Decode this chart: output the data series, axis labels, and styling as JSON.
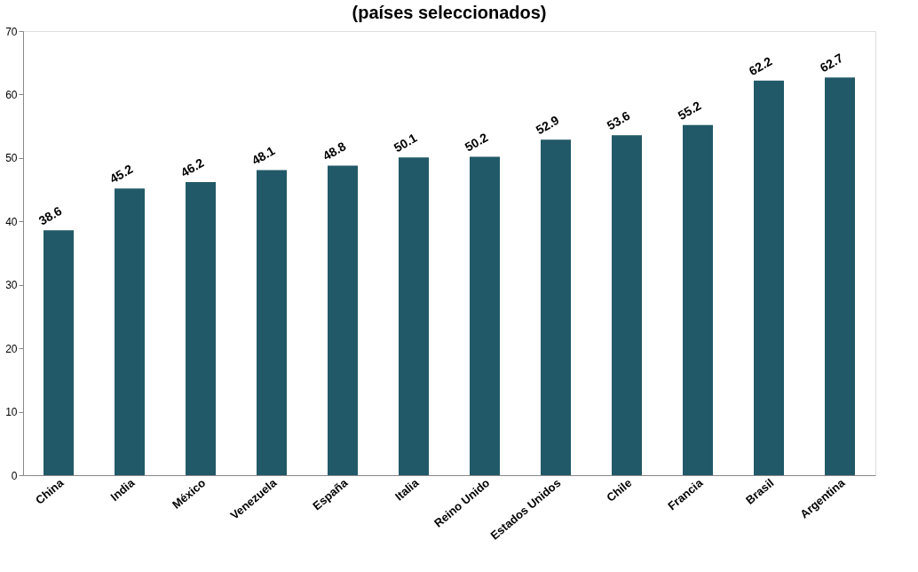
{
  "chart_data": {
    "type": "bar",
    "title": "(países seleccionados)",
    "categories": [
      "China",
      "India",
      "México",
      "Venezuela",
      "España",
      "Italia",
      "Reino Unido",
      "Estados Unidos",
      "Chile",
      "Francia",
      "Brasil",
      "Argentina"
    ],
    "values": [
      38.6,
      45.2,
      46.2,
      48.1,
      48.8,
      50.1,
      50.2,
      52.9,
      53.6,
      55.2,
      62.2,
      62.7
    ],
    "color": "#215968",
    "ylim": [
      0,
      70
    ],
    "yticks": [
      0,
      10,
      20,
      30,
      40,
      50,
      60,
      70
    ],
    "grid": false,
    "data_labels": true
  }
}
